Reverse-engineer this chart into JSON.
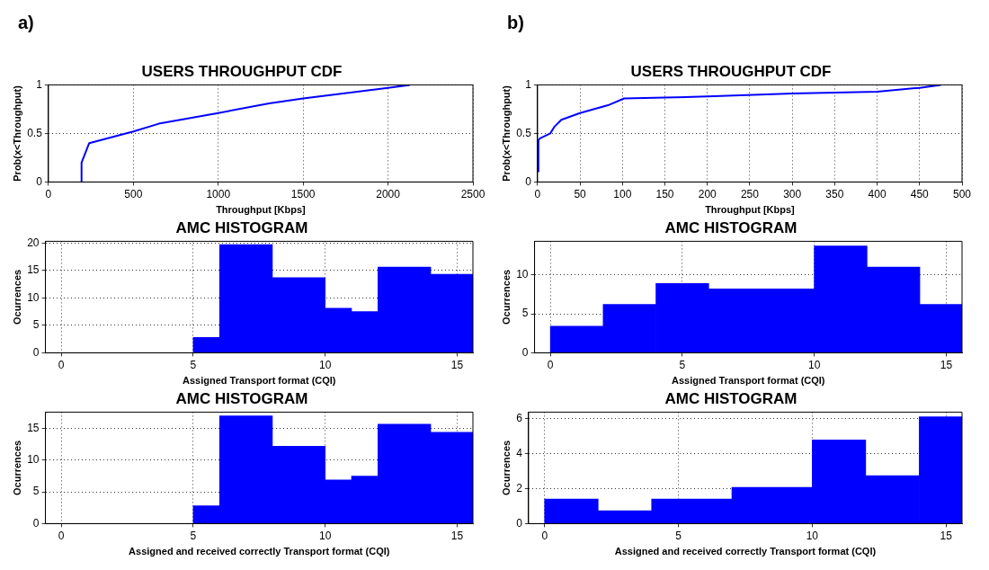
{
  "chart_data": [
    {
      "type": "line",
      "title": "USERS THROUGHPUT CDF",
      "xlabel": "Throughput [Kbps]",
      "ylabel": "Prob(x<Throughput)",
      "annotations": [
        "a)"
      ],
      "color": "#0000ff",
      "line_style": "solid",
      "grid": true,
      "x": [
        195,
        195,
        240,
        500,
        650,
        1000,
        1300,
        1500,
        2000,
        2130
      ],
      "values": [
        0,
        0.2,
        0.4,
        0.52,
        0.6,
        0.71,
        0.81,
        0.86,
        0.97,
        1
      ],
      "xlim": [
        0,
        2500
      ],
      "xticks": [
        0,
        500,
        1000,
        1500,
        2000,
        2500
      ],
      "ylim": [
        0,
        1
      ],
      "yticks": [
        0,
        0.5,
        1
      ]
    },
    {
      "type": "line",
      "title": "USERS THROUGHPUT CDF",
      "xlabel": "Throughput [Kbps]",
      "ylabel": "Prob(x<Throughput)",
      "annotations": [
        "b)"
      ],
      "color": "#0000ff",
      "line_style": "solid",
      "grid": true,
      "x": [
        1,
        1,
        3,
        15,
        20,
        28,
        50,
        83,
        102,
        150,
        200,
        300,
        400,
        450,
        475
      ],
      "values": [
        0.1,
        0.43,
        0.45,
        0.5,
        0.57,
        0.64,
        0.71,
        0.79,
        0.86,
        0.87,
        0.88,
        0.91,
        0.93,
        0.97,
        1
      ],
      "xlim": [
        0,
        500
      ],
      "xticks": [
        0,
        50,
        100,
        150,
        200,
        250,
        300,
        350,
        400,
        450,
        500
      ],
      "ylim": [
        0,
        1
      ],
      "yticks": [
        0,
        0.5,
        1
      ]
    },
    {
      "type": "histogram",
      "title": "AMC HISTOGRAM",
      "xlabel": "Assigned Transport format (CQI)",
      "ylabel": "Ocurrences",
      "color": "#0000ff",
      "grid": true,
      "bins": [
        5,
        6,
        8,
        10,
        11,
        12,
        14,
        15.6
      ],
      "values": [
        2.8,
        19.7,
        13.7,
        8.1,
        7.5,
        15.6,
        14.3
      ],
      "xlim": [
        -0.6,
        15.6
      ],
      "xticks": [
        0,
        5,
        10,
        15
      ],
      "ylim": [
        0,
        20.3
      ],
      "yticks": [
        0,
        5,
        10,
        15,
        20
      ]
    },
    {
      "type": "histogram",
      "title": "AMC HISTOGRAM",
      "xlabel": "Assigned Transport format (CQI)",
      "ylabel": "Ocurrences",
      "color": "#0000ff",
      "grid": true,
      "bins": [
        0,
        2,
        4,
        6,
        10,
        12,
        14,
        15.6
      ],
      "values": [
        3.4,
        6.2,
        8.9,
        8.2,
        13.7,
        11.0,
        6.2
      ],
      "xlim": [
        -0.6,
        15.6
      ],
      "xticks": [
        0,
        5,
        10,
        15
      ],
      "ylim": [
        0,
        14.3
      ],
      "yticks": [
        0,
        5,
        10
      ]
    },
    {
      "type": "histogram",
      "title": "AMC HISTOGRAM",
      "xlabel": "Assigned and received correctly Transport format (CQI)",
      "ylabel": "Ocurrences",
      "color": "#0000ff",
      "grid": true,
      "bins": [
        5,
        6,
        8,
        10,
        11,
        12,
        14,
        15.6
      ],
      "values": [
        2.8,
        17.0,
        12.2,
        6.9,
        7.5,
        15.7,
        14.4
      ],
      "xlim": [
        -0.6,
        15.6
      ],
      "xticks": [
        0,
        5,
        10,
        15
      ],
      "ylim": [
        0,
        17.6
      ],
      "yticks": [
        0,
        5,
        10,
        15
      ]
    },
    {
      "type": "histogram",
      "title": "AMC HISTOGRAM",
      "xlabel": "Assigned and received correctly Transport format (CQI)",
      "ylabel": "Ocurrences",
      "color": "#0000ff",
      "grid": true,
      "bins": [
        0,
        2,
        4,
        7,
        10,
        12,
        14,
        15.6
      ],
      "values": [
        1.4,
        0.73,
        1.4,
        2.06,
        4.77,
        2.73,
        6.09
      ],
      "xlim": [
        -0.6,
        15.6
      ],
      "xticks": [
        0,
        5,
        10,
        15
      ],
      "ylim": [
        0,
        6.35
      ],
      "yticks": [
        0,
        2,
        4,
        6
      ]
    }
  ]
}
